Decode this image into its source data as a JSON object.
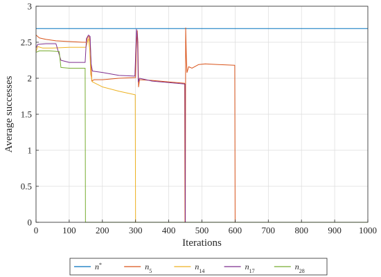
{
  "chart_data": {
    "type": "line",
    "xlabel": "Iterations",
    "ylabel": "Average successes",
    "xlim": [
      0,
      1000
    ],
    "ylim": [
      0,
      3
    ],
    "xticks": [
      "0",
      "100",
      "200",
      "300",
      "400",
      "500",
      "600",
      "700",
      "800",
      "900",
      "1000"
    ],
    "yticks": [
      "0",
      "0.5",
      "1",
      "1.5",
      "2",
      "2.5",
      "3"
    ],
    "grid": true,
    "legend_position": "bottom",
    "series": [
      {
        "name": "n*",
        "base": "n",
        "sup": "*",
        "sub": "",
        "color": "#0072BD",
        "points": [
          [
            0,
            2.69
          ],
          [
            1000,
            2.69
          ]
        ]
      },
      {
        "name": "n5",
        "base": "n",
        "sup": "",
        "sub": "5",
        "color": "#D95319",
        "points": [
          [
            0,
            2.6
          ],
          [
            10,
            2.56
          ],
          [
            30,
            2.54
          ],
          [
            60,
            2.52
          ],
          [
            100,
            2.51
          ],
          [
            140,
            2.5
          ],
          [
            152,
            2.5
          ],
          [
            155,
            2.57
          ],
          [
            160,
            2.58
          ],
          [
            163,
            2.5
          ],
          [
            166,
            2.2
          ],
          [
            168,
            1.96
          ],
          [
            175,
            1.98
          ],
          [
            200,
            1.98
          ],
          [
            250,
            2.0
          ],
          [
            300,
            2.01
          ],
          [
            302,
            2.4
          ],
          [
            305,
            2.66
          ],
          [
            307,
            2.5
          ],
          [
            309,
            1.88
          ],
          [
            312,
            1.98
          ],
          [
            350,
            1.97
          ],
          [
            400,
            1.95
          ],
          [
            448,
            1.93
          ],
          [
            449,
            0
          ],
          [
            450,
            0
          ],
          [
            451,
            2.7
          ],
          [
            453,
            2.3
          ],
          [
            455,
            2.08
          ],
          [
            460,
            2.16
          ],
          [
            470,
            2.14
          ],
          [
            490,
            2.19
          ],
          [
            510,
            2.2
          ],
          [
            550,
            2.19
          ],
          [
            599,
            2.18
          ],
          [
            600,
            0
          ],
          [
            1000,
            0
          ]
        ]
      },
      {
        "name": "n14",
        "base": "n",
        "sup": "",
        "sub": "14",
        "color": "#EDB120",
        "points": [
          [
            0,
            2.37
          ],
          [
            5,
            2.44
          ],
          [
            20,
            2.42
          ],
          [
            50,
            2.42
          ],
          [
            100,
            2.43
          ],
          [
            150,
            2.43
          ],
          [
            155,
            2.5
          ],
          [
            158,
            2.55
          ],
          [
            162,
            2.4
          ],
          [
            165,
            2.05
          ],
          [
            170,
            1.95
          ],
          [
            200,
            1.88
          ],
          [
            250,
            1.82
          ],
          [
            299,
            1.77
          ],
          [
            300,
            0
          ],
          [
            1000,
            0
          ]
        ]
      },
      {
        "name": "n17",
        "base": "n",
        "sup": "",
        "sub": "17",
        "color": "#7E2F8E",
        "points": [
          [
            0,
            2.42
          ],
          [
            5,
            2.47
          ],
          [
            30,
            2.48
          ],
          [
            60,
            2.48
          ],
          [
            75,
            2.25
          ],
          [
            100,
            2.22
          ],
          [
            148,
            2.22
          ],
          [
            152,
            2.55
          ],
          [
            158,
            2.6
          ],
          [
            163,
            2.58
          ],
          [
            166,
            2.2
          ],
          [
            170,
            2.1
          ],
          [
            200,
            2.08
          ],
          [
            250,
            2.04
          ],
          [
            298,
            2.03
          ],
          [
            300,
            2.3
          ],
          [
            303,
            2.68
          ],
          [
            306,
            2.55
          ],
          [
            308,
            1.95
          ],
          [
            312,
            2.0
          ],
          [
            350,
            1.96
          ],
          [
            400,
            1.94
          ],
          [
            449,
            1.92
          ],
          [
            450,
            0
          ],
          [
            1000,
            0
          ]
        ]
      },
      {
        "name": "n28",
        "base": "n",
        "sup": "",
        "sub": "28",
        "color": "#77AC30",
        "points": [
          [
            0,
            2.36
          ],
          [
            10,
            2.38
          ],
          [
            40,
            2.38
          ],
          [
            70,
            2.37
          ],
          [
            75,
            2.15
          ],
          [
            100,
            2.14
          ],
          [
            148,
            2.14
          ],
          [
            149,
            0
          ],
          [
            1000,
            0
          ]
        ]
      }
    ]
  }
}
